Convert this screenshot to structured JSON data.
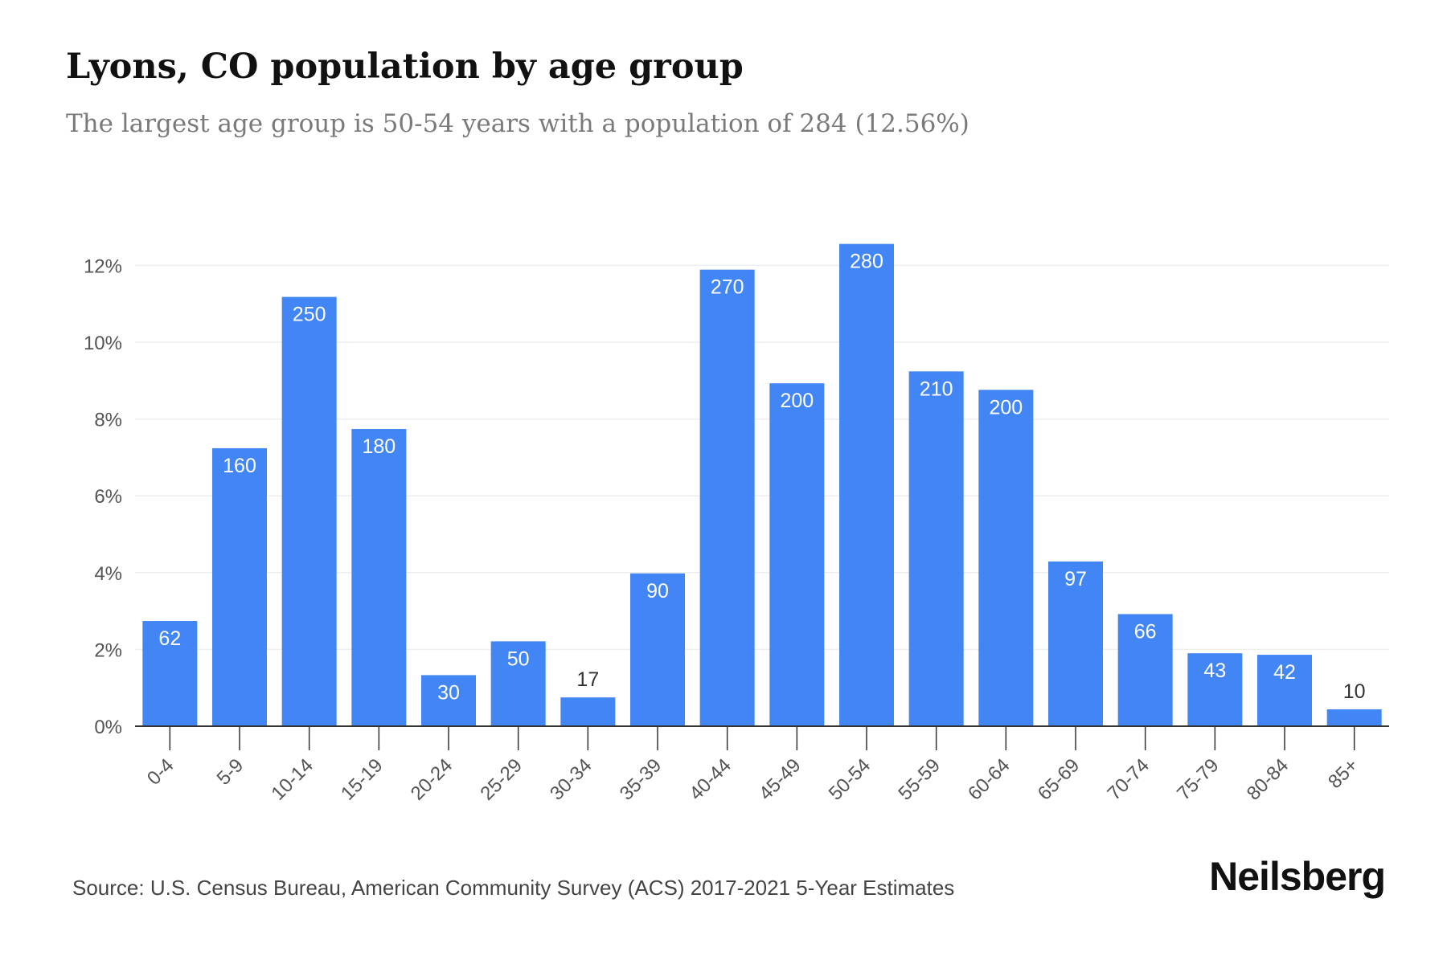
{
  "title": "Lyons, CO population by age group",
  "subtitle": "The largest age group is 50-54 years with a population of 284 (12.56%)",
  "source": "Source: U.S. Census Bureau, American Community Survey (ACS) 2017-2021 5-Year Estimates",
  "brand": "Neilsberg",
  "colors": {
    "bar": "#4285f4",
    "label_inside": "#ffffff",
    "label_outside": "#333333",
    "axis_text": "#555555",
    "grid": "#eeeeee",
    "axis": "#333333"
  },
  "chart_data": {
    "type": "bar",
    "categories": [
      "0-4",
      "5-9",
      "10-14",
      "15-19",
      "20-24",
      "25-29",
      "30-34",
      "35-39",
      "40-44",
      "45-49",
      "50-54",
      "55-59",
      "60-64",
      "65-69",
      "70-74",
      "75-79",
      "80-84",
      "85+"
    ],
    "values": [
      2.74,
      7.24,
      11.18,
      7.74,
      1.33,
      2.21,
      0.75,
      3.98,
      11.89,
      8.93,
      12.56,
      9.24,
      8.76,
      4.29,
      2.92,
      1.9,
      1.86,
      0.44
    ],
    "data_labels": [
      "62",
      "160",
      "250",
      "180",
      "30",
      "50",
      "17",
      "90",
      "270",
      "200",
      "280",
      "210",
      "200",
      "97",
      "66",
      "43",
      "42",
      "10"
    ],
    "yticks": [
      0,
      2,
      4,
      6,
      8,
      10,
      12
    ],
    "ytick_labels": [
      "0%",
      "2%",
      "4%",
      "6%",
      "8%",
      "10%",
      "12%"
    ],
    "ylim": [
      0,
      13
    ],
    "xlabel": "",
    "ylabel": "",
    "grid": true,
    "legend": "none"
  }
}
